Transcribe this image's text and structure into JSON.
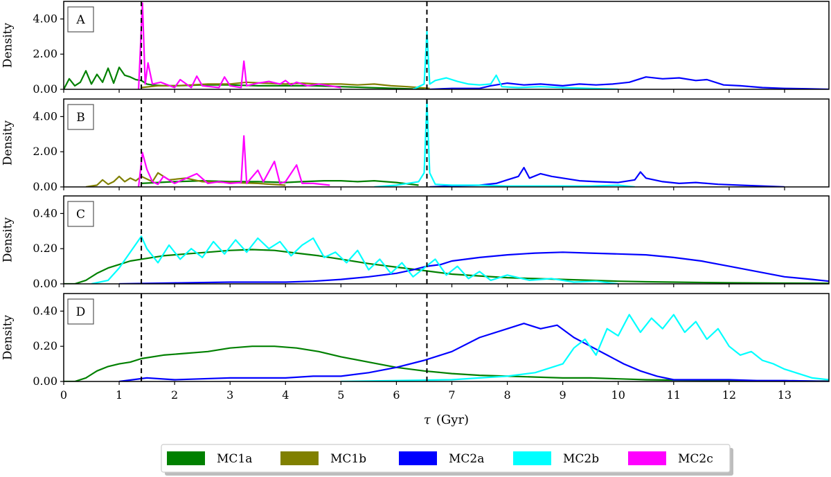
{
  "chart_data": {
    "type": "line",
    "title": "",
    "xlabel_symbol": "τ",
    "xlabel_unit": "(Gyr)",
    "xlim": [
      0,
      13.8
    ],
    "xticks": [
      "0",
      "1",
      "2",
      "3",
      "4",
      "5",
      "6",
      "7",
      "8",
      "9",
      "10",
      "11",
      "12",
      "13"
    ],
    "vlines": [
      1.4,
      6.55
    ],
    "legend": [
      {
        "name": "MC1a",
        "color": "#008000"
      },
      {
        "name": "MC1b",
        "color": "#808000"
      },
      {
        "name": "MC2a",
        "color": "#0000ff"
      },
      {
        "name": "MC2b",
        "color": "#00ffff"
      },
      {
        "name": "MC2c",
        "color": "#ff00ff"
      }
    ],
    "panels": [
      {
        "label": "A",
        "ylabel": "Density",
        "ylim": [
          0,
          5
        ],
        "yticks": [
          "0.00",
          "2.00",
          "4.00"
        ],
        "series": [
          {
            "name": "MC1a",
            "x": [
              0,
              0.1,
              0.2,
              0.3,
              0.4,
              0.5,
              0.6,
              0.7,
              0.8,
              0.9,
              1.0,
              1.1,
              1.2,
              1.3,
              1.4,
              1.5,
              1.6,
              1.8,
              2.0,
              2.5,
              3.0,
              3.5,
              4.0,
              4.5,
              5.0,
              5.5,
              6.0,
              6.5
            ],
            "y": [
              0,
              0.6,
              0.2,
              0.4,
              1.05,
              0.3,
              0.85,
              0.4,
              1.2,
              0.35,
              1.25,
              0.8,
              0.7,
              0.55,
              0.5,
              0.3,
              0.25,
              0.2,
              0.2,
              0.25,
              0.25,
              0.2,
              0.2,
              0.2,
              0.15,
              0.1,
              0.05,
              0
            ]
          },
          {
            "name": "MC1b",
            "x": [
              1.4,
              1.7,
              2.0,
              2.3,
              2.6,
              3.0,
              3.3,
              3.6,
              4.0,
              4.3,
              4.6,
              5.0,
              5.3,
              5.6,
              5.9,
              6.2,
              6.6
            ],
            "y": [
              0.1,
              0.2,
              0.2,
              0.25,
              0.3,
              0.3,
              0.4,
              0.35,
              0.3,
              0.35,
              0.3,
              0.3,
              0.25,
              0.3,
              0.2,
              0.15,
              0.05
            ]
          },
          {
            "name": "MC2a",
            "x": [
              6.6,
              7.0,
              7.5,
              7.7,
              8.0,
              8.3,
              8.6,
              9.0,
              9.3,
              9.6,
              9.9,
              10.2,
              10.5,
              10.8,
              11.1,
              11.4,
              11.6,
              11.9,
              12.2,
              12.6,
              13.0,
              13.4,
              13.8
            ],
            "y": [
              0,
              0.05,
              0.05,
              0.2,
              0.35,
              0.25,
              0.3,
              0.2,
              0.3,
              0.25,
              0.3,
              0.4,
              0.7,
              0.6,
              0.65,
              0.5,
              0.55,
              0.25,
              0.2,
              0.1,
              0.05,
              0.03,
              0
            ]
          },
          {
            "name": "MC2b",
            "x": [
              6.3,
              6.5,
              6.55,
              6.6,
              6.7,
              6.9,
              7.1,
              7.3,
              7.5,
              7.7,
              7.8,
              7.9,
              8.2,
              8.6,
              9.0,
              9.5,
              10.0
            ],
            "y": [
              0,
              0.3,
              3.3,
              0.3,
              0.5,
              0.65,
              0.45,
              0.3,
              0.25,
              0.3,
              0.8,
              0.15,
              0.1,
              0.15,
              0.1,
              0.05,
              0
            ]
          },
          {
            "name": "MC2c",
            "x": [
              1.35,
              1.42,
              1.47,
              1.52,
              1.6,
              1.75,
              2.0,
              2.1,
              2.3,
              2.4,
              2.5,
              2.8,
              2.9,
              3.0,
              3.2,
              3.25,
              3.3,
              3.5,
              3.7,
              3.9,
              4.0,
              4.1,
              4.2,
              4.4,
              4.6,
              5.0
            ],
            "y": [
              0,
              4.9,
              0.3,
              1.5,
              0.3,
              0.4,
              0.1,
              0.55,
              0.1,
              0.75,
              0.2,
              0.1,
              0.7,
              0.2,
              0.1,
              1.6,
              0.2,
              0.35,
              0.45,
              0.3,
              0.5,
              0.25,
              0.4,
              0.2,
              0.3,
              0.1
            ]
          }
        ]
      },
      {
        "label": "B",
        "ylabel": "Density",
        "ylim": [
          0,
          5
        ],
        "yticks": [
          "0.00",
          "2.00",
          "4.00"
        ],
        "series": [
          {
            "name": "MC1a",
            "x": [
              1.4,
              2.0,
              2.5,
              3.0,
              3.5,
              4.0,
              4.3,
              4.7,
              5.0,
              5.3,
              5.6,
              6.0,
              6.4
            ],
            "y": [
              0.2,
              0.3,
              0.35,
              0.3,
              0.3,
              0.25,
              0.3,
              0.35,
              0.35,
              0.3,
              0.35,
              0.25,
              0.1
            ]
          },
          {
            "name": "MC1b",
            "x": [
              0.4,
              0.6,
              0.7,
              0.8,
              0.9,
              1.0,
              1.1,
              1.2,
              1.3,
              1.4,
              1.6,
              1.7,
              1.9,
              2.2,
              2.5,
              3.0,
              3.5,
              4.0
            ],
            "y": [
              0,
              0.1,
              0.4,
              0.15,
              0.3,
              0.6,
              0.3,
              0.5,
              0.35,
              0.6,
              0.3,
              0.8,
              0.4,
              0.5,
              0.3,
              0.25,
              0.2,
              0.1
            ]
          },
          {
            "name": "MC2a",
            "x": [
              6.6,
              7.0,
              7.5,
              7.8,
              8.0,
              8.2,
              8.3,
              8.4,
              8.6,
              8.8,
              9.0,
              9.3,
              9.6,
              10.0,
              10.3,
              10.4,
              10.5,
              10.8,
              11.1,
              11.4,
              11.8,
              12.2,
              12.6,
              13.0
            ],
            "y": [
              0,
              0.05,
              0.1,
              0.2,
              0.4,
              0.6,
              1.1,
              0.5,
              0.75,
              0.6,
              0.5,
              0.35,
              0.3,
              0.25,
              0.4,
              0.85,
              0.5,
              0.3,
              0.2,
              0.25,
              0.15,
              0.1,
              0.05,
              0
            ]
          },
          {
            "name": "MC2b",
            "x": [
              5.6,
              6.0,
              6.4,
              6.5,
              6.55,
              6.6,
              6.7,
              7.0,
              7.5,
              8.0,
              8.6,
              9.0,
              9.5,
              10.0,
              10.3
            ],
            "y": [
              0,
              0.1,
              0.3,
              0.8,
              4.9,
              0.8,
              0.15,
              0.1,
              0.1,
              0.05,
              0.05,
              0.05,
              0.05,
              0.1,
              0
            ]
          },
          {
            "name": "MC2c",
            "x": [
              1.35,
              1.42,
              1.5,
              1.6,
              1.7,
              1.8,
              2.0,
              2.4,
              2.6,
              2.8,
              3.0,
              3.2,
              3.25,
              3.3,
              3.5,
              3.6,
              3.8,
              3.9,
              4.0,
              4.2,
              4.3,
              4.5,
              4.8
            ],
            "y": [
              0,
              1.95,
              1.0,
              0.3,
              0.15,
              0.6,
              0.2,
              0.75,
              0.2,
              0.3,
              0.2,
              0.25,
              2.9,
              0.2,
              0.95,
              0.3,
              1.45,
              0.2,
              0.3,
              1.25,
              0.2,
              0.2,
              0.1
            ]
          }
        ]
      },
      {
        "label": "C",
        "ylabel": "Density",
        "ylim": [
          0,
          0.5
        ],
        "yticks": [
          "0.00",
          "0.20",
          "0.40"
        ],
        "series": [
          {
            "name": "MC1a",
            "x": [
              0,
              0.2,
              0.4,
              0.6,
              0.8,
              1.0,
              1.2,
              1.4,
              1.8,
              2.2,
              2.6,
              3.0,
              3.4,
              3.8,
              4.2,
              4.6,
              5.0,
              5.5,
              6.0,
              6.5,
              7.0,
              7.5,
              8.0,
              8.5,
              9.0,
              9.5,
              10.0,
              10.5,
              11.0,
              12.0,
              13.0,
              13.8
            ],
            "y": [
              0,
              0,
              0.02,
              0.06,
              0.09,
              0.11,
              0.13,
              0.14,
              0.16,
              0.17,
              0.18,
              0.19,
              0.195,
              0.19,
              0.175,
              0.16,
              0.14,
              0.115,
              0.095,
              0.075,
              0.055,
              0.045,
              0.035,
              0.03,
              0.025,
              0.02,
              0.015,
              0.012,
              0.01,
              0.006,
              0.004,
              0.003
            ]
          },
          {
            "name": "MC2a",
            "x": [
              1.0,
              2.0,
              3.0,
              4.0,
              4.5,
              5.0,
              5.5,
              6.0,
              6.3,
              6.55,
              6.8,
              7.0,
              7.5,
              8.0,
              8.5,
              9.0,
              9.5,
              10.0,
              10.5,
              11.0,
              11.5,
              12.0,
              12.5,
              13.0,
              13.5,
              13.8
            ],
            "y": [
              0,
              0.005,
              0.01,
              0.01,
              0.015,
              0.025,
              0.04,
              0.06,
              0.08,
              0.1,
              0.11,
              0.13,
              0.15,
              0.165,
              0.175,
              0.18,
              0.175,
              0.17,
              0.165,
              0.15,
              0.13,
              0.1,
              0.07,
              0.04,
              0.025,
              0.015
            ]
          },
          {
            "name": "MC2b",
            "x": [
              0.5,
              0.8,
              1.0,
              1.2,
              1.4,
              1.5,
              1.7,
              1.9,
              2.1,
              2.3,
              2.5,
              2.7,
              2.9,
              3.1,
              3.3,
              3.5,
              3.7,
              3.9,
              4.1,
              4.3,
              4.5,
              4.7,
              4.9,
              5.1,
              5.3,
              5.5,
              5.7,
              5.9,
              6.1,
              6.3,
              6.5,
              6.7,
              6.9,
              7.1,
              7.3,
              7.5,
              7.7,
              8.0,
              8.4,
              8.8,
              9.2,
              9.6,
              10.0
            ],
            "y": [
              0,
              0.02,
              0.09,
              0.18,
              0.27,
              0.2,
              0.12,
              0.22,
              0.14,
              0.2,
              0.15,
              0.24,
              0.17,
              0.25,
              0.18,
              0.26,
              0.2,
              0.24,
              0.16,
              0.22,
              0.26,
              0.15,
              0.18,
              0.12,
              0.19,
              0.08,
              0.14,
              0.06,
              0.12,
              0.04,
              0.09,
              0.14,
              0.05,
              0.1,
              0.03,
              0.07,
              0.02,
              0.05,
              0.02,
              0.03,
              0.01,
              0.015,
              0
            ]
          }
        ]
      },
      {
        "label": "D",
        "ylabel": "Density",
        "ylim": [
          0,
          0.5
        ],
        "yticks": [
          "0.00",
          "0.20",
          "0.40"
        ],
        "series": [
          {
            "name": "MC1a",
            "x": [
              0,
              0.2,
              0.4,
              0.6,
              0.8,
              1.0,
              1.2,
              1.4,
              1.8,
              2.2,
              2.6,
              3.0,
              3.4,
              3.8,
              4.2,
              4.6,
              5.0,
              5.5,
              6.0,
              6.5,
              7.0,
              7.5,
              8.0,
              8.5,
              9.0,
              9.5,
              10.0,
              10.5,
              11.0,
              12.0,
              13.0,
              13.8
            ],
            "y": [
              0,
              0,
              0.02,
              0.06,
              0.085,
              0.1,
              0.11,
              0.13,
              0.15,
              0.16,
              0.17,
              0.19,
              0.2,
              0.2,
              0.19,
              0.17,
              0.14,
              0.11,
              0.08,
              0.06,
              0.045,
              0.035,
              0.03,
              0.025,
              0.02,
              0.02,
              0.015,
              0.01,
              0.008,
              0.005,
              0.003,
              0.002
            ]
          },
          {
            "name": "MC2a",
            "x": [
              1.0,
              1.5,
              2.0,
              3.0,
              4.0,
              4.5,
              5.0,
              5.5,
              6.0,
              6.5,
              7.0,
              7.5,
              8.0,
              8.3,
              8.6,
              8.9,
              9.2,
              9.5,
              9.8,
              10.1,
              10.4,
              10.7,
              11.0,
              11.5,
              12.0,
              12.5,
              13.0,
              13.8
            ],
            "y": [
              0,
              0.02,
              0.01,
              0.02,
              0.02,
              0.03,
              0.03,
              0.05,
              0.08,
              0.12,
              0.17,
              0.25,
              0.3,
              0.33,
              0.3,
              0.32,
              0.25,
              0.2,
              0.15,
              0.1,
              0.06,
              0.03,
              0.01,
              0.01,
              0.01,
              0.005,
              0.005,
              0
            ]
          },
          {
            "name": "MC2b",
            "x": [
              5.0,
              6.0,
              7.0,
              7.5,
              8.0,
              8.5,
              8.8,
              9.0,
              9.2,
              9.4,
              9.6,
              9.8,
              10.0,
              10.2,
              10.4,
              10.6,
              10.8,
              11.0,
              11.2,
              11.4,
              11.6,
              11.8,
              12.0,
              12.2,
              12.4,
              12.6,
              12.8,
              13.0,
              13.2,
              13.5,
              13.8
            ],
            "y": [
              0,
              0.005,
              0.01,
              0.02,
              0.03,
              0.05,
              0.08,
              0.1,
              0.19,
              0.24,
              0.15,
              0.3,
              0.26,
              0.38,
              0.28,
              0.36,
              0.3,
              0.38,
              0.28,
              0.34,
              0.24,
              0.3,
              0.2,
              0.15,
              0.17,
              0.12,
              0.1,
              0.07,
              0.05,
              0.02,
              0.01
            ]
          }
        ]
      }
    ]
  }
}
